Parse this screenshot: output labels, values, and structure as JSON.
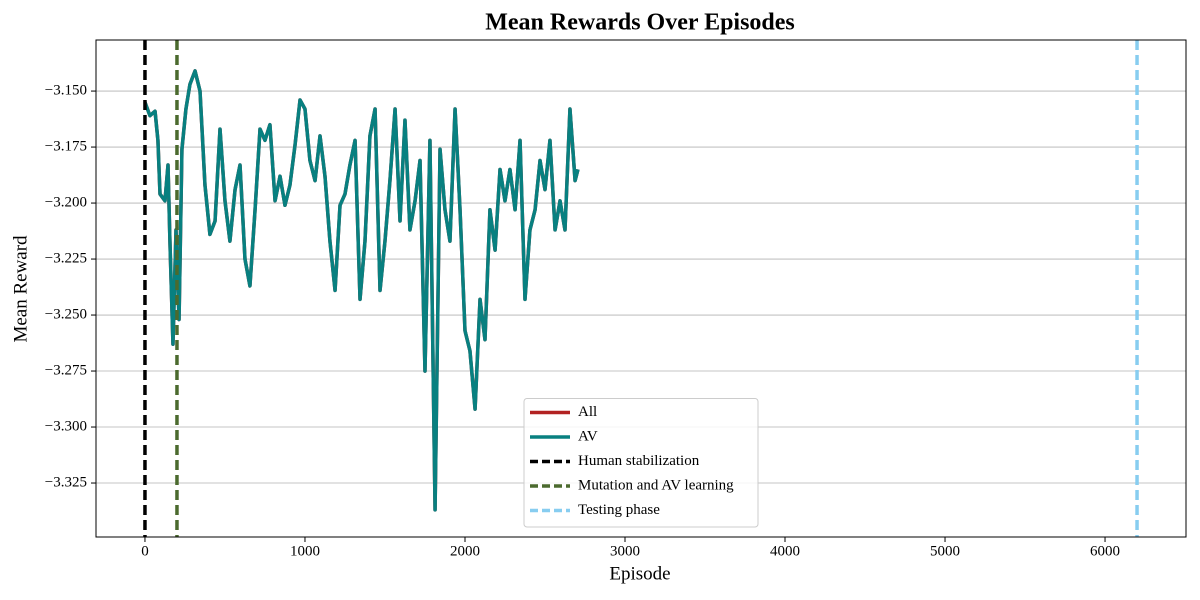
{
  "chart_data": {
    "type": "line",
    "title": "Mean Rewards Over Episodes",
    "x_label": "Episode",
    "y_label": "Mean Reward",
    "x": [
      0,
      31,
      63,
      81,
      94,
      125,
      144,
      156,
      175,
      194,
      213,
      231,
      256,
      281,
      313,
      344,
      375,
      406,
      438,
      469,
      500,
      531,
      563,
      594,
      625,
      656,
      688,
      719,
      750,
      781,
      813,
      844,
      875,
      906,
      938,
      969,
      1000,
      1031,
      1063,
      1094,
      1125,
      1156,
      1188,
      1219,
      1250,
      1281,
      1313,
      1344,
      1375,
      1406,
      1438,
      1469,
      1500,
      1531,
      1563,
      1594,
      1625,
      1656,
      1688,
      1719,
      1750,
      1781,
      1813,
      1844,
      1875,
      1906,
      1938,
      1969,
      2000,
      2031,
      2063,
      2094,
      2125,
      2156,
      2188,
      2219,
      2250,
      2281,
      2313,
      2344,
      2375,
      2406,
      2438,
      2469,
      2500,
      2531,
      2563,
      2594,
      2625,
      2656,
      2688,
      2706
    ],
    "series": [
      {
        "name": "All",
        "color": "#b22222",
        "values": [
          -3.155,
          -3.161,
          -3.159,
          -3.172,
          -3.196,
          -3.199,
          -3.183,
          -3.217,
          -3.263,
          -3.212,
          -3.252,
          -3.176,
          -3.158,
          -3.147,
          -3.141,
          -3.15,
          -3.192,
          -3.214,
          -3.208,
          -3.167,
          -3.199,
          -3.217,
          -3.194,
          -3.183,
          -3.225,
          -3.237,
          -3.203,
          -3.167,
          -3.172,
          -3.165,
          -3.199,
          -3.188,
          -3.201,
          -3.192,
          -3.174,
          -3.154,
          -3.158,
          -3.181,
          -3.19,
          -3.17,
          -3.188,
          -3.217,
          -3.239,
          -3.201,
          -3.196,
          -3.183,
          -3.172,
          -3.243,
          -3.217,
          -3.17,
          -3.158,
          -3.239,
          -3.217,
          -3.19,
          -3.158,
          -3.208,
          -3.163,
          -3.212,
          -3.199,
          -3.181,
          -3.275,
          -3.172,
          -3.337,
          -3.176,
          -3.203,
          -3.217,
          -3.158,
          -3.203,
          -3.257,
          -3.266,
          -3.292,
          -3.243,
          -3.261,
          -3.203,
          -3.221,
          -3.185,
          -3.199,
          -3.185,
          -3.203,
          -3.172,
          -3.243,
          -3.212,
          -3.203,
          -3.181,
          -3.194,
          -3.172,
          -3.212,
          -3.199,
          -3.212,
          -3.158,
          -3.19,
          -3.185
        ]
      },
      {
        "name": "AV",
        "color": "#088080",
        "values": [
          -3.155,
          -3.161,
          -3.159,
          -3.172,
          -3.196,
          -3.199,
          -3.183,
          -3.217,
          -3.263,
          -3.212,
          -3.252,
          -3.176,
          -3.158,
          -3.147,
          -3.141,
          -3.15,
          -3.192,
          -3.214,
          -3.208,
          -3.167,
          -3.199,
          -3.217,
          -3.194,
          -3.183,
          -3.225,
          -3.237,
          -3.203,
          -3.167,
          -3.172,
          -3.165,
          -3.199,
          -3.188,
          -3.201,
          -3.192,
          -3.174,
          -3.154,
          -3.158,
          -3.181,
          -3.19,
          -3.17,
          -3.188,
          -3.217,
          -3.239,
          -3.201,
          -3.196,
          -3.183,
          -3.172,
          -3.243,
          -3.217,
          -3.17,
          -3.158,
          -3.239,
          -3.217,
          -3.19,
          -3.158,
          -3.208,
          -3.163,
          -3.212,
          -3.199,
          -3.181,
          -3.275,
          -3.172,
          -3.337,
          -3.176,
          -3.203,
          -3.217,
          -3.158,
          -3.203,
          -3.257,
          -3.266,
          -3.292,
          -3.243,
          -3.261,
          -3.203,
          -3.221,
          -3.185,
          -3.199,
          -3.185,
          -3.203,
          -3.172,
          -3.243,
          -3.212,
          -3.203,
          -3.181,
          -3.194,
          -3.172,
          -3.212,
          -3.199,
          -3.212,
          -3.158,
          -3.19,
          -3.185
        ]
      }
    ],
    "vlines": [
      {
        "name": "Human stabilization",
        "x": 0,
        "color": "#000000"
      },
      {
        "name": "Mutation and AV learning",
        "x": 200,
        "color": "#4b6a2e"
      },
      {
        "name": "Testing phase",
        "x": 6200,
        "color": "#87cdf0"
      }
    ],
    "xlim": [
      -306,
      6506
    ],
    "ylim": [
      -3.3491,
      -3.1272
    ],
    "xticks": [
      0,
      1000,
      2000,
      3000,
      4000,
      5000,
      6000
    ],
    "yticks": [
      {
        "value": -3.15,
        "label": "−3.150"
      },
      {
        "value": -3.175,
        "label": "−3.175"
      },
      {
        "value": -3.2,
        "label": "−3.200"
      },
      {
        "value": -3.225,
        "label": "−3.225"
      },
      {
        "value": -3.25,
        "label": "−3.250"
      },
      {
        "value": -3.275,
        "label": "−3.275"
      },
      {
        "value": -3.3,
        "label": "−3.300"
      },
      {
        "value": -3.325,
        "label": "−3.325"
      }
    ],
    "grid": "y",
    "legend": "lower center"
  }
}
